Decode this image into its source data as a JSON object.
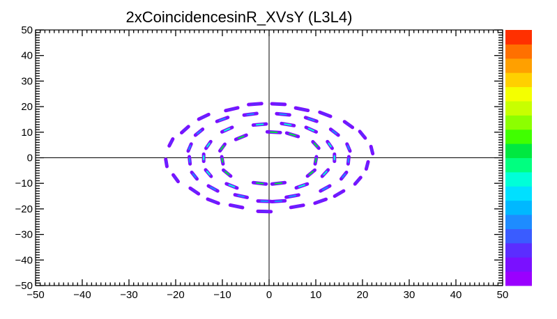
{
  "chart_data": {
    "type": "heatmap",
    "title": "2xCoincidencesinR_XVsY (L3L4)",
    "xlabel": "",
    "ylabel": "",
    "xlim": [
      -50,
      50
    ],
    "ylim": [
      -50,
      50
    ],
    "grid": false,
    "axis_lines_at_zero": true,
    "x_ticks": [
      "−50",
      "−40",
      "−30",
      "−20",
      "−10",
      "0",
      "10",
      "20",
      "30",
      "40",
      "50"
    ],
    "y_ticks": [
      "−50",
      "−40",
      "−30",
      "−20",
      "−10",
      "0",
      "10",
      "20",
      "30",
      "40",
      "50"
    ],
    "x_tick_values": [
      -50,
      -40,
      -30,
      -20,
      -10,
      0,
      10,
      20,
      30,
      40,
      50
    ],
    "y_tick_values": [
      -50,
      -40,
      -30,
      -20,
      -10,
      0,
      10,
      20,
      30,
      40,
      50
    ],
    "color_palette": [
      "#9a00ff",
      "#7a10ff",
      "#5b2dff",
      "#3a5cff",
      "#1e8cff",
      "#00b8ff",
      "#00e0ff",
      "#00ffd8",
      "#00ff80",
      "#00e840",
      "#40ff00",
      "#8cff00",
      "#c8ff00",
      "#f4ff00",
      "#ffd000",
      "#ffa000",
      "#ff7000",
      "#ff3000"
    ],
    "rings": [
      {
        "radius": 21,
        "count": 15,
        "level": 0.08
      },
      {
        "radius": 17,
        "count": 13,
        "level": 0.2
      },
      {
        "radius": 13.5,
        "count": 11,
        "level": 0.35
      },
      {
        "radius": 10,
        "count": 9,
        "level": 0.5
      }
    ],
    "segments": [
      {
        "x": -3,
        "y": 21
      },
      {
        "x": 2,
        "y": 21
      },
      {
        "x": -8,
        "y": 19
      },
      {
        "x": 7,
        "y": 19
      },
      {
        "x": -14,
        "y": 16
      },
      {
        "x": 12,
        "y": 17
      },
      {
        "x": -18,
        "y": 11
      },
      {
        "x": 17,
        "y": 13
      },
      {
        "x": 20,
        "y": 9
      },
      {
        "x": -21,
        "y": 6
      },
      {
        "x": 22,
        "y": 3
      },
      {
        "x": -22,
        "y": -2
      },
      {
        "x": 21,
        "y": -3
      },
      {
        "x": -20,
        "y": -8
      },
      {
        "x": 19,
        "y": -9
      },
      {
        "x": -16,
        "y": -13
      },
      {
        "x": 15,
        "y": -14
      },
      {
        "x": -12,
        "y": -17
      },
      {
        "x": 11,
        "y": -17
      },
      {
        "x": -7,
        "y": -19
      },
      {
        "x": 6,
        "y": -19
      },
      {
        "x": -1,
        "y": -21
      },
      {
        "x": -4,
        "y": 17
      },
      {
        "x": 3,
        "y": 17
      },
      {
        "x": -10,
        "y": 15
      },
      {
        "x": 9,
        "y": 15
      },
      {
        "x": -15,
        "y": 10
      },
      {
        "x": 14,
        "y": 10
      },
      {
        "x": -17,
        "y": 4
      },
      {
        "x": 17,
        "y": 4
      },
      {
        "x": -17,
        "y": -1
      },
      {
        "x": 17,
        "y": -1
      },
      {
        "x": -16,
        "y": -7
      },
      {
        "x": 16,
        "y": -7
      },
      {
        "x": -12,
        "y": -12
      },
      {
        "x": 12,
        "y": -12
      },
      {
        "x": -6,
        "y": -15
      },
      {
        "x": 5,
        "y": -15
      },
      {
        "x": -1,
        "y": -17
      },
      {
        "x": 2,
        "y": -17
      },
      {
        "x": -2,
        "y": 13
      },
      {
        "x": 4,
        "y": 13
      },
      {
        "x": -9,
        "y": 11
      },
      {
        "x": 9,
        "y": 11
      },
      {
        "x": -13,
        "y": 5
      },
      {
        "x": 13,
        "y": 5
      },
      {
        "x": -14,
        "y": 0
      },
      {
        "x": 14,
        "y": 0
      },
      {
        "x": -13,
        "y": -6
      },
      {
        "x": 12,
        "y": -6
      },
      {
        "x": -8,
        "y": -11
      },
      {
        "x": 7,
        "y": -11
      },
      {
        "x": 1,
        "y": 10
      },
      {
        "x": -6,
        "y": 8
      },
      {
        "x": 5,
        "y": 9
      },
      {
        "x": -10,
        "y": 4
      },
      {
        "x": 10,
        "y": 5
      },
      {
        "x": -10,
        "y": -1
      },
      {
        "x": 10,
        "y": -1
      },
      {
        "x": -9,
        "y": -6
      },
      {
        "x": 9,
        "y": -6
      },
      {
        "x": -2,
        "y": -10
      },
      {
        "x": 2,
        "y": -10
      }
    ]
  }
}
